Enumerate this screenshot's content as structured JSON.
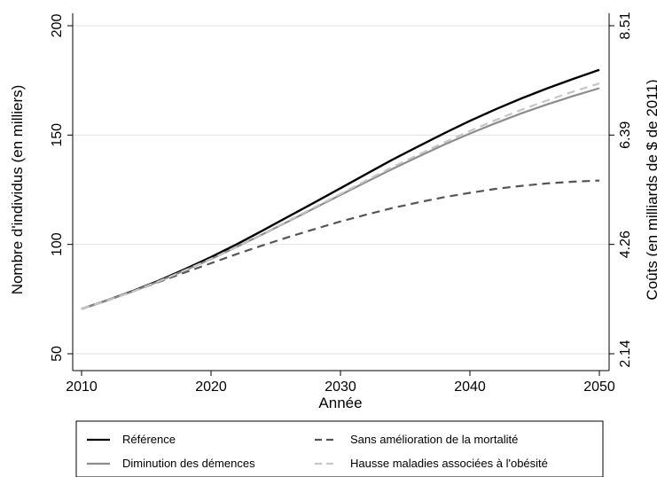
{
  "chart_data": {
    "type": "line",
    "title": "",
    "xlabel": "Année",
    "ylabel": "Nombre d'individus (en milliers)",
    "y2label": "Coûts (en milliards de $ de 2011)",
    "x": [
      2010,
      2012,
      2014,
      2016,
      2018,
      2020,
      2022,
      2024,
      2026,
      2028,
      2030,
      2032,
      2034,
      2036,
      2038,
      2040,
      2042,
      2044,
      2046,
      2048,
      2050
    ],
    "xlim": [
      2010,
      2050
    ],
    "ylim": [
      50,
      200
    ],
    "xticks": [
      {
        "value": 2010,
        "label": "2010"
      },
      {
        "value": 2020,
        "label": "2020"
      },
      {
        "value": 2030,
        "label": "2030"
      },
      {
        "value": 2040,
        "label": "2040"
      },
      {
        "value": 2050,
        "label": "2050"
      }
    ],
    "yticks": [
      {
        "value": 50,
        "label": "50"
      },
      {
        "value": 100,
        "label": "100"
      },
      {
        "value": 150,
        "label": "150"
      },
      {
        "value": 200,
        "label": "200"
      }
    ],
    "y2ticks": [
      {
        "value": 50,
        "label": "2.14"
      },
      {
        "value": 100,
        "label": "4.26"
      },
      {
        "value": 150,
        "label": "6.39"
      },
      {
        "value": 200,
        "label": "8.51"
      }
    ],
    "grid": true,
    "legend_position": "bottom",
    "series": [
      {
        "name": "Référence",
        "color": "#000000",
        "dash": "solid",
        "values": [
          70.5,
          74.5,
          78.8,
          83.5,
          88.7,
          94.2,
          100.1,
          106.4,
          112.8,
          119.2,
          125.7,
          132.2,
          138.7,
          144.8,
          150.8,
          156.5,
          161.8,
          166.8,
          171.4,
          175.7,
          179.8
        ]
      },
      {
        "name": "Sans amélioration de la mortalité",
        "color": "#555555",
        "dash": "dashed",
        "values": [
          70.5,
          74.4,
          78.6,
          82.9,
          87.2,
          91.4,
          95.6,
          99.6,
          103.4,
          107.0,
          110.5,
          113.6,
          116.6,
          119.2,
          121.6,
          123.6,
          125.4,
          126.8,
          127.9,
          128.7,
          129.2
        ]
      },
      {
        "name": "Diminution des démences",
        "color": "#8c8c8c",
        "dash": "solid",
        "values": [
          70.5,
          74.4,
          78.6,
          83.2,
          88.2,
          93.3,
          98.9,
          104.7,
          110.6,
          116.6,
          122.6,
          128.6,
          134.5,
          140.1,
          145.6,
          150.7,
          155.5,
          160.0,
          164.1,
          167.9,
          171.4
        ]
      },
      {
        "name": "Hausse maladies associées à l'obésité",
        "color": "#c6c6c6",
        "dash": "dashed",
        "values": [
          70.5,
          74.4,
          78.6,
          83.2,
          88.2,
          93.4,
          99.0,
          104.9,
          110.9,
          117.0,
          123.1,
          129.3,
          135.3,
          141.0,
          146.6,
          151.9,
          156.9,
          161.6,
          165.9,
          169.9,
          173.6
        ]
      }
    ]
  },
  "legend": {
    "items": [
      {
        "label": "Référence",
        "color": "#000000",
        "dash": "solid"
      },
      {
        "label": "Sans amélioration de la mortalité",
        "color": "#555555",
        "dash": "dashed"
      },
      {
        "label": "Diminution des démences",
        "color": "#8c8c8c",
        "dash": "solid"
      },
      {
        "label": "Hausse maladies associées à l'obésité",
        "color": "#c6c6c6",
        "dash": "dashed"
      }
    ]
  }
}
